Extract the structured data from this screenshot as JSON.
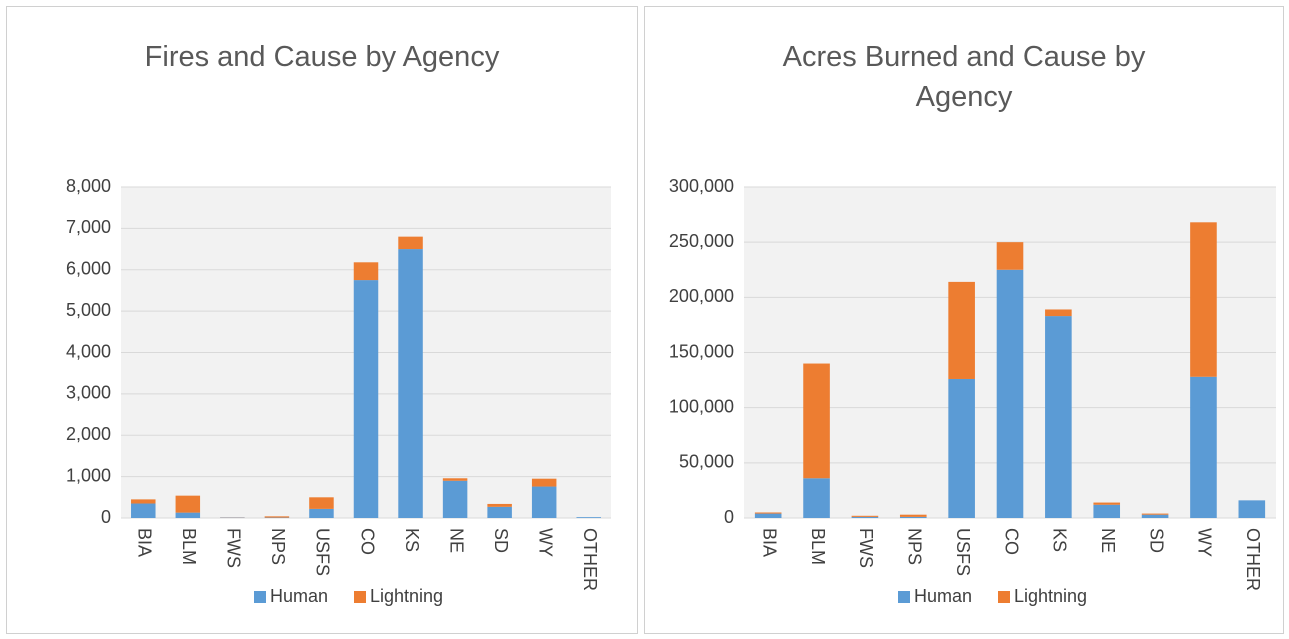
{
  "chart_data": [
    {
      "type": "bar",
      "stacked": true,
      "title": "Fires and Cause by Agency",
      "categories": [
        "BIA",
        "BLM",
        "FWS",
        "NPS",
        "USFS",
        "CO",
        "KS",
        "NE",
        "SD",
        "WY",
        "OTHER"
      ],
      "series": [
        {
          "name": "Human",
          "color": "#5b9bd5",
          "values": [
            350,
            130,
            10,
            10,
            220,
            5750,
            6500,
            900,
            270,
            760,
            20
          ]
        },
        {
          "name": "Lightning",
          "color": "#ed7d31",
          "values": [
            100,
            410,
            5,
            30,
            280,
            430,
            300,
            60,
            70,
            190,
            0
          ]
        }
      ],
      "ylim": [
        0,
        8000
      ],
      "yticks": [
        0,
        {
          "value": 1000,
          "label": "1,000"
        },
        {
          "value": 2000,
          "label": "2,000"
        },
        {
          "value": 3000,
          "label": "3,000"
        },
        {
          "value": 4000,
          "label": "4,000"
        },
        {
          "value": 5000,
          "label": "5,000"
        },
        {
          "value": 6000,
          "label": "6,000"
        },
        {
          "value": 7000,
          "label": "7,000"
        },
        {
          "value": 8000,
          "label": "8,000"
        }
      ],
      "grid": true,
      "legend": "bottom"
    },
    {
      "type": "bar",
      "stacked": true,
      "title": "Acres Burned and Cause by Agency",
      "categories": [
        "BIA",
        "BLM",
        "FWS",
        "NPS",
        "USFS",
        "CO",
        "KS",
        "NE",
        "SD",
        "WY",
        "OTHER"
      ],
      "series": [
        {
          "name": "Human",
          "color": "#5b9bd5",
          "values": [
            4000,
            36000,
            1000,
            1000,
            126000,
            225000,
            183000,
            12000,
            3000,
            128000,
            16000
          ]
        },
        {
          "name": "Lightning",
          "color": "#ed7d31",
          "values": [
            1000,
            104000,
            1000,
            2000,
            88000,
            25000,
            6000,
            2000,
            1000,
            140000,
            0
          ]
        }
      ],
      "ylim": [
        0,
        300000
      ],
      "yticks": [
        0,
        {
          "value": 50000,
          "label": "50,000"
        },
        {
          "value": 100000,
          "label": "100,000"
        },
        {
          "value": 150000,
          "label": "150,000"
        },
        {
          "value": 200000,
          "label": "200,000"
        },
        {
          "value": 250000,
          "label": "250,000"
        },
        {
          "value": 300000,
          "label": "300,000"
        }
      ],
      "grid": true,
      "legend": "bottom"
    }
  ]
}
